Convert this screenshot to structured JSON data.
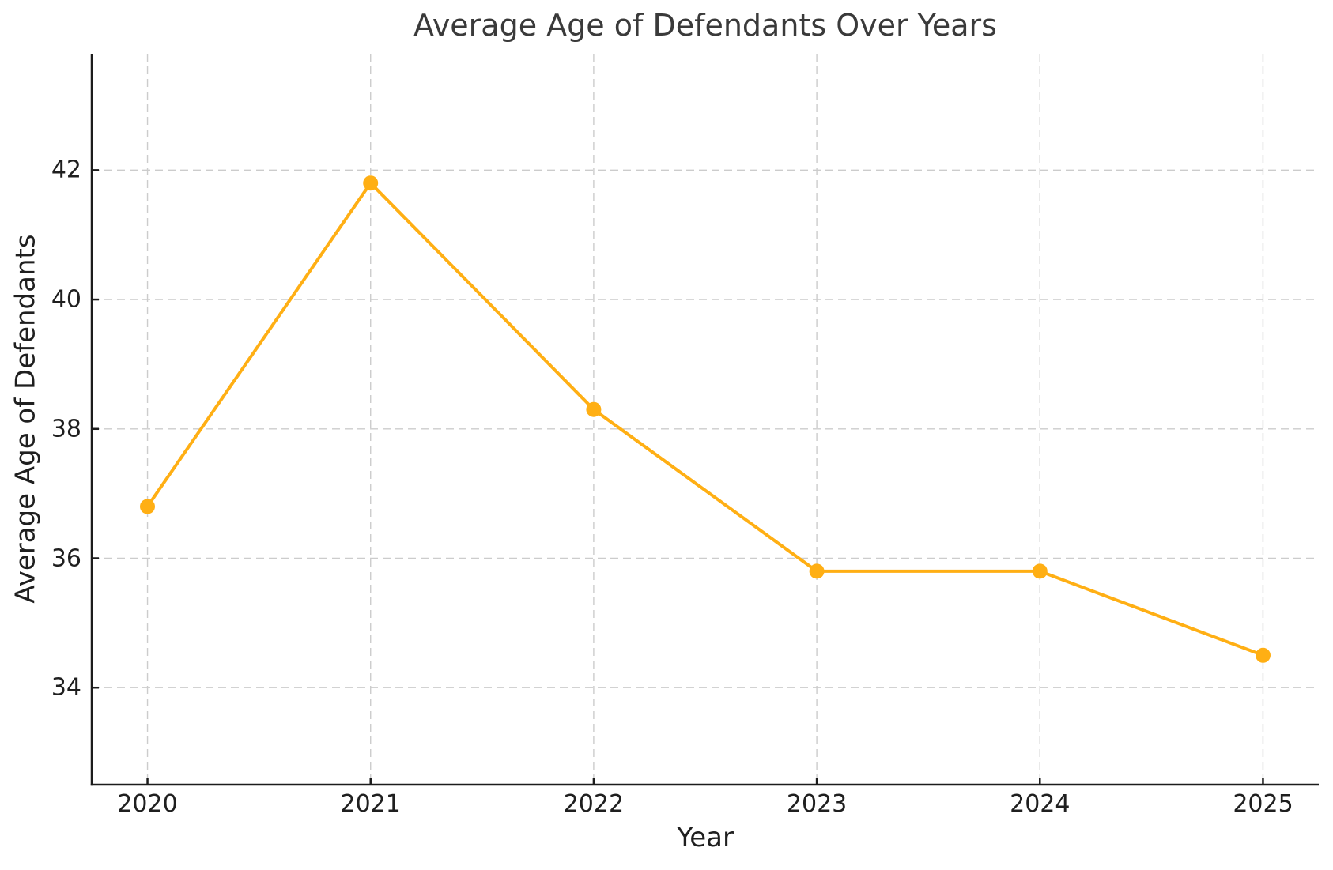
{
  "chart_data": {
    "type": "line",
    "title": "Average Age of Defendants Over Years",
    "xlabel": "Year",
    "ylabel": "Average Age of Defendants",
    "x": [
      2020,
      2021,
      2022,
      2023,
      2024,
      2025
    ],
    "series": [
      {
        "name": "Average Age of Defendants",
        "values": [
          36.8,
          41.8,
          38.3,
          35.8,
          35.8,
          34.5
        ]
      }
    ],
    "y_ticks": [
      34,
      36,
      38,
      40,
      42
    ],
    "xlim": [
      2019.75,
      2025.25
    ],
    "ylim": [
      32.5,
      43.8
    ],
    "grid": true,
    "grid_style": "dashed",
    "legend_position": "none",
    "line_color": "#FFAF14",
    "marker": "circle",
    "marker_color": "#FFAF14",
    "grid_color": "#CCCCCC",
    "spine_color": "#1C1C1C",
    "tick_text_color": "#1F1F1F",
    "title_color": "#3A3A3A",
    "background_color": "#FFFFFF"
  }
}
